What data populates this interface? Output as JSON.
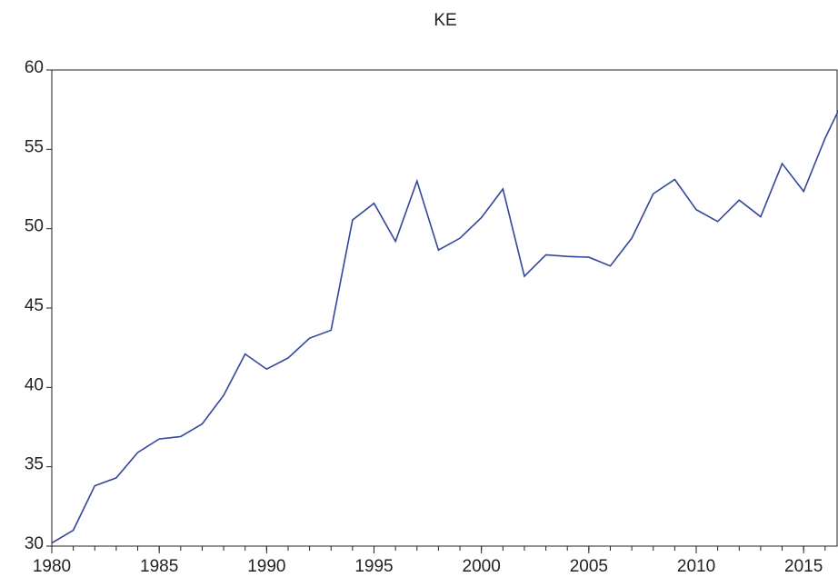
{
  "chart_data": {
    "type": "line",
    "title": "KE",
    "x": [
      1980,
      1981,
      1982,
      1983,
      1984,
      1985,
      1986,
      1987,
      1988,
      1989,
      1990,
      1991,
      1992,
      1993,
      1994,
      1995,
      1996,
      1997,
      1998,
      1999,
      2000,
      2001,
      2002,
      2003,
      2004,
      2005,
      2006,
      2007,
      2008,
      2009,
      2010,
      2011,
      2012,
      2013,
      2014,
      2015,
      2016,
      2017
    ],
    "series": [
      {
        "name": "KE",
        "color": "#33479a",
        "values": [
          30.2,
          31.0,
          33.8,
          34.3,
          35.9,
          36.75,
          36.9,
          37.7,
          39.5,
          42.1,
          41.15,
          41.85,
          43.1,
          43.6,
          50.55,
          51.6,
          49.2,
          53.0,
          48.65,
          49.4,
          50.7,
          52.5,
          47.0,
          48.35,
          48.25,
          48.2,
          47.65,
          49.4,
          52.2,
          53.1,
          51.2,
          50.45,
          51.8,
          50.75,
          54.1,
          52.35,
          55.7,
          58.5
        ]
      }
    ],
    "xlim": [
      1980,
      2016.6
    ],
    "xticks": [
      1980,
      1985,
      1990,
      1995,
      2000,
      2005,
      2010,
      2015
    ],
    "ylim": [
      30,
      60
    ],
    "yticks": [
      30,
      35,
      40,
      45,
      50,
      55,
      60
    ],
    "grid": false
  }
}
